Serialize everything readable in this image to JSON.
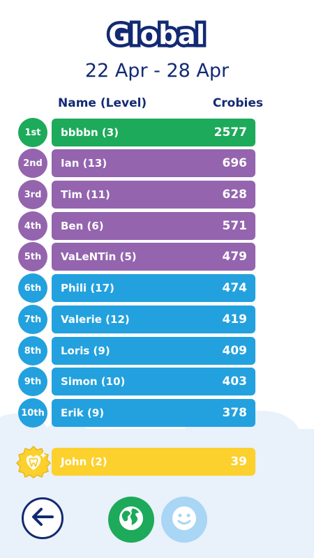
{
  "header": {
    "title": "Global",
    "date_range": "22 Apr - 28 Apr"
  },
  "columns": {
    "name": "Name (Level)",
    "score": "Crobies"
  },
  "leaderboard": [
    {
      "rank": "1st",
      "name": "bbbbn (3)",
      "score": "2577",
      "color": "#1daa5a"
    },
    {
      "rank": "2nd",
      "name": "Ian (13)",
      "score": "696",
      "color": "#9464ae"
    },
    {
      "rank": "3rd",
      "name": "Tim (11)",
      "score": "628",
      "color": "#9464ae"
    },
    {
      "rank": "4th",
      "name": "Ben (6)",
      "score": "571",
      "color": "#9464ae"
    },
    {
      "rank": "5th",
      "name": "VaLeNTin (5)",
      "score": "479",
      "color": "#9464ae"
    },
    {
      "rank": "6th",
      "name": "Phili (17)",
      "score": "474",
      "color": "#23a1de"
    },
    {
      "rank": "7th",
      "name": "Valerie (12)",
      "score": "419",
      "color": "#23a1de"
    },
    {
      "rank": "8th",
      "name": "Loris (9)",
      "score": "409",
      "color": "#23a1de"
    },
    {
      "rank": "9th",
      "name": "Simon (10)",
      "score": "403",
      "color": "#23a1de"
    },
    {
      "rank": "10th",
      "name": "Erik (9)",
      "score": "378",
      "color": "#23a1de"
    }
  ],
  "current_user": {
    "name": "John (2)",
    "score": "39",
    "badge_icon": "tooth-heart-icon",
    "color": "#fcd02d"
  },
  "nav": {
    "back_icon": "arrow-left-icon",
    "global_icon": "globe-icon",
    "friends_icon": "smiley-face-icon"
  },
  "colors": {
    "navy": "#132a73",
    "green": "#1daa5a",
    "purple": "#9464ae",
    "blue": "#23a1de",
    "yellow": "#fcd02d",
    "light_blue": "#a8d6f4"
  }
}
